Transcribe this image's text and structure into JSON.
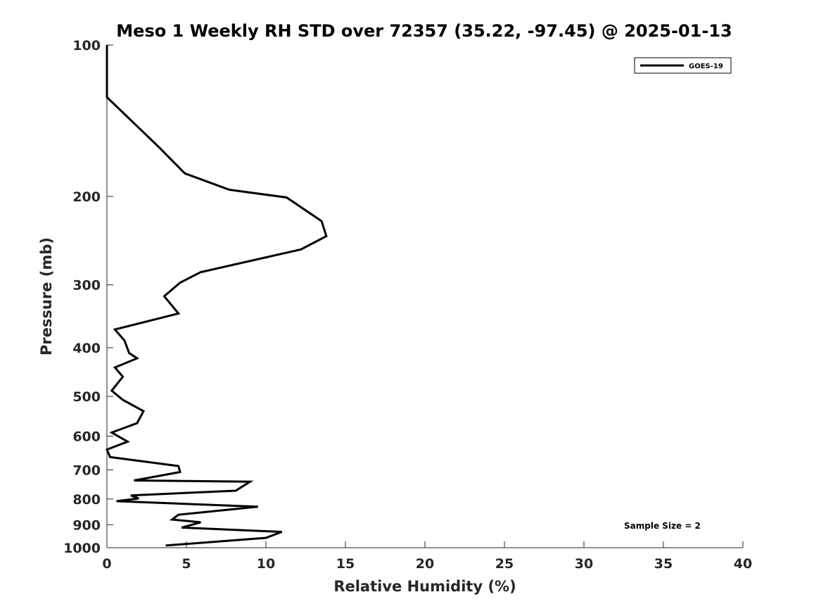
{
  "chart_data": {
    "type": "line",
    "title": "Meso 1 Weekly RH STD over 72357 (35.22, -97.45) @ 2025-01-13",
    "xlabel": "Relative Humidity (%)",
    "ylabel": "Pressure (mb)",
    "xlim": [
      0,
      40
    ],
    "ylim": [
      1000,
      100
    ],
    "yscale": "log",
    "xticks": [
      0,
      5,
      10,
      15,
      20,
      25,
      30,
      35,
      40
    ],
    "yticks": [
      100,
      200,
      300,
      400,
      500,
      600,
      700,
      800,
      900,
      1000
    ],
    "grid": false,
    "legend_position": "top-right",
    "annotation": "Sample Size = 2",
    "series": [
      {
        "name": "GOES-19",
        "color": "#000000",
        "x": [
          0.0,
          0.0,
          3.3,
          4.9,
          7.7,
          11.3,
          13.5,
          13.8,
          12.2,
          5.9,
          4.6,
          3.6,
          4.5,
          0.5,
          1.1,
          1.4,
          1.9,
          0.5,
          1.0,
          0.3,
          1.0,
          2.3,
          1.9,
          0.3,
          1.3,
          0.0,
          0.2,
          4.5,
          4.6,
          1.7,
          9.0,
          8.1,
          1.5,
          2.0,
          0.6,
          9.5,
          4.5,
          4.1,
          5.9,
          4.7,
          11.0,
          10.0,
          3.7
        ],
        "y": [
          100,
          127,
          160,
          180,
          194,
          201,
          224,
          240,
          255,
          283,
          297,
          316,
          342,
          368,
          387,
          410,
          420,
          438,
          457,
          487,
          508,
          535,
          565,
          590,
          615,
          638,
          660,
          688,
          707,
          735,
          739,
          770,
          787,
          798,
          808,
          829,
          860,
          879,
          890,
          912,
          930,
          956,
          990
        ]
      }
    ]
  }
}
